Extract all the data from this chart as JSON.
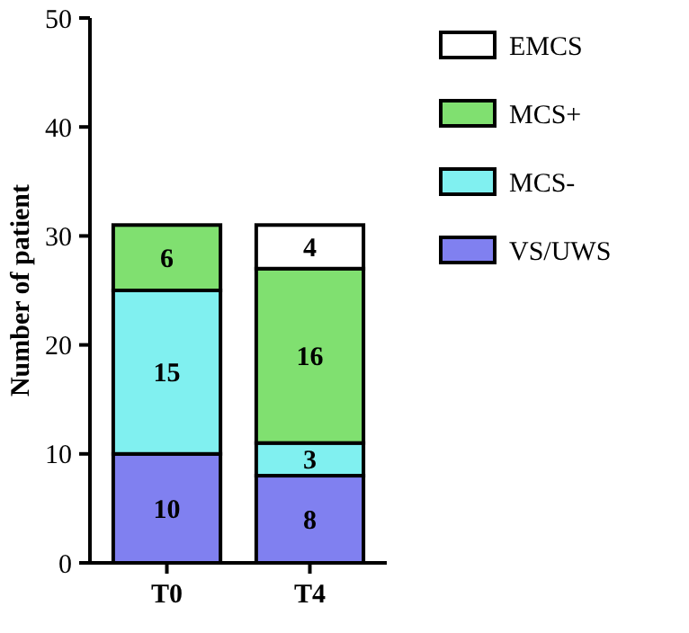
{
  "chart_data": {
    "type": "bar",
    "stacked": true,
    "categories": [
      "T0",
      "T4"
    ],
    "ylabel": "Number of patient",
    "ylim": [
      0,
      50
    ],
    "yticks": [
      0,
      10,
      20,
      30,
      40,
      50
    ],
    "legend": "right",
    "data_labels": true,
    "grid": false,
    "series": [
      {
        "name": "VS/UWS",
        "color": "#8080f0",
        "values": [
          10,
          8
        ]
      },
      {
        "name": "MCS-",
        "color": "#80f0f0",
        "values": [
          15,
          3
        ]
      },
      {
        "name": "MCS+",
        "color": "#80e070",
        "values": [
          6,
          16
        ]
      },
      {
        "name": "EMCS",
        "color": "#ffffff",
        "values": [
          null,
          4
        ]
      }
    ]
  }
}
